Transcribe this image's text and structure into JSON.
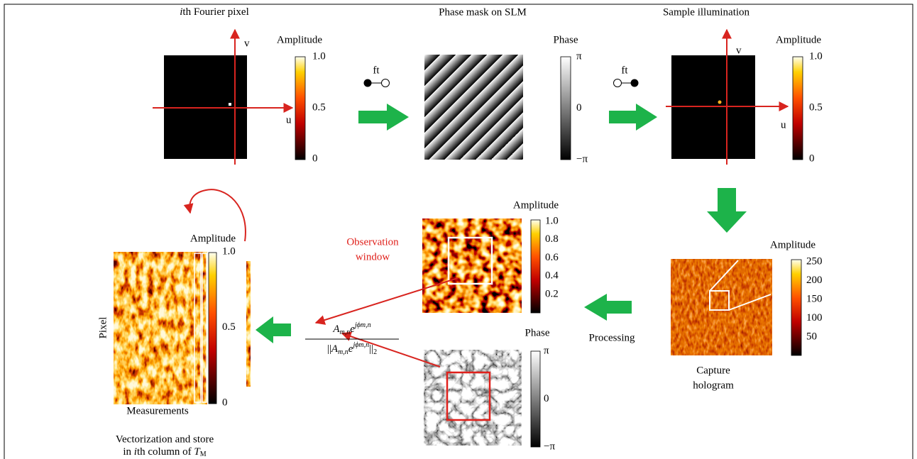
{
  "panel_fourier": {
    "title_var": "i",
    "title_rest": "th Fourier pixel",
    "colorbar_label": "Amplitude",
    "ticks": [
      "1.0",
      "0.5",
      "0"
    ],
    "axis_v": "v",
    "axis_u": "u"
  },
  "transform_1": {
    "label": "ft"
  },
  "panel_slm": {
    "title": "Phase mask on SLM",
    "colorbar_label": "Phase",
    "ticks": [
      "π",
      "0",
      "−π"
    ]
  },
  "transform_2": {
    "label": "ft"
  },
  "panel_sample": {
    "title": "Sample illumination",
    "colorbar_label": "Amplitude",
    "ticks": [
      "1.0",
      "0.5",
      "0"
    ],
    "axis_v": "v",
    "axis_u": "u"
  },
  "panel_hologram": {
    "colorbar_label": "Amplitude",
    "ticks": [
      "250",
      "200",
      "150",
      "100",
      "50"
    ],
    "caption_lines": [
      "Capture",
      "hologram"
    ]
  },
  "processing": {
    "label": "Processing"
  },
  "panel_amplitude": {
    "colorbar_label": "Amplitude",
    "ticks": [
      "1.0",
      "0.8",
      "0.6",
      "0.4",
      "0.2"
    ],
    "window_lines": [
      "Observation",
      "window"
    ]
  },
  "panel_phase": {
    "colorbar_label": "Phase",
    "ticks": [
      "π",
      "0",
      "−π"
    ]
  },
  "formula": {
    "A": "A",
    "sub": "m,n",
    "e": "e",
    "exp": "jϕm,n",
    "norm": "||",
    "norm_sub": "2"
  },
  "panel_matrix": {
    "colorbar_label": "Amplitude",
    "ticks": [
      "1.0",
      "0.5",
      "0"
    ],
    "y_label": "Pixel",
    "x_label": "Measurements",
    "caption_line1": "Vectorization and store",
    "caption_line2_pre": "in ",
    "caption_line2_var": "i",
    "caption_line2_mid": "th column of ",
    "caption_line2_T": "T",
    "caption_line2_sub": "M"
  }
}
